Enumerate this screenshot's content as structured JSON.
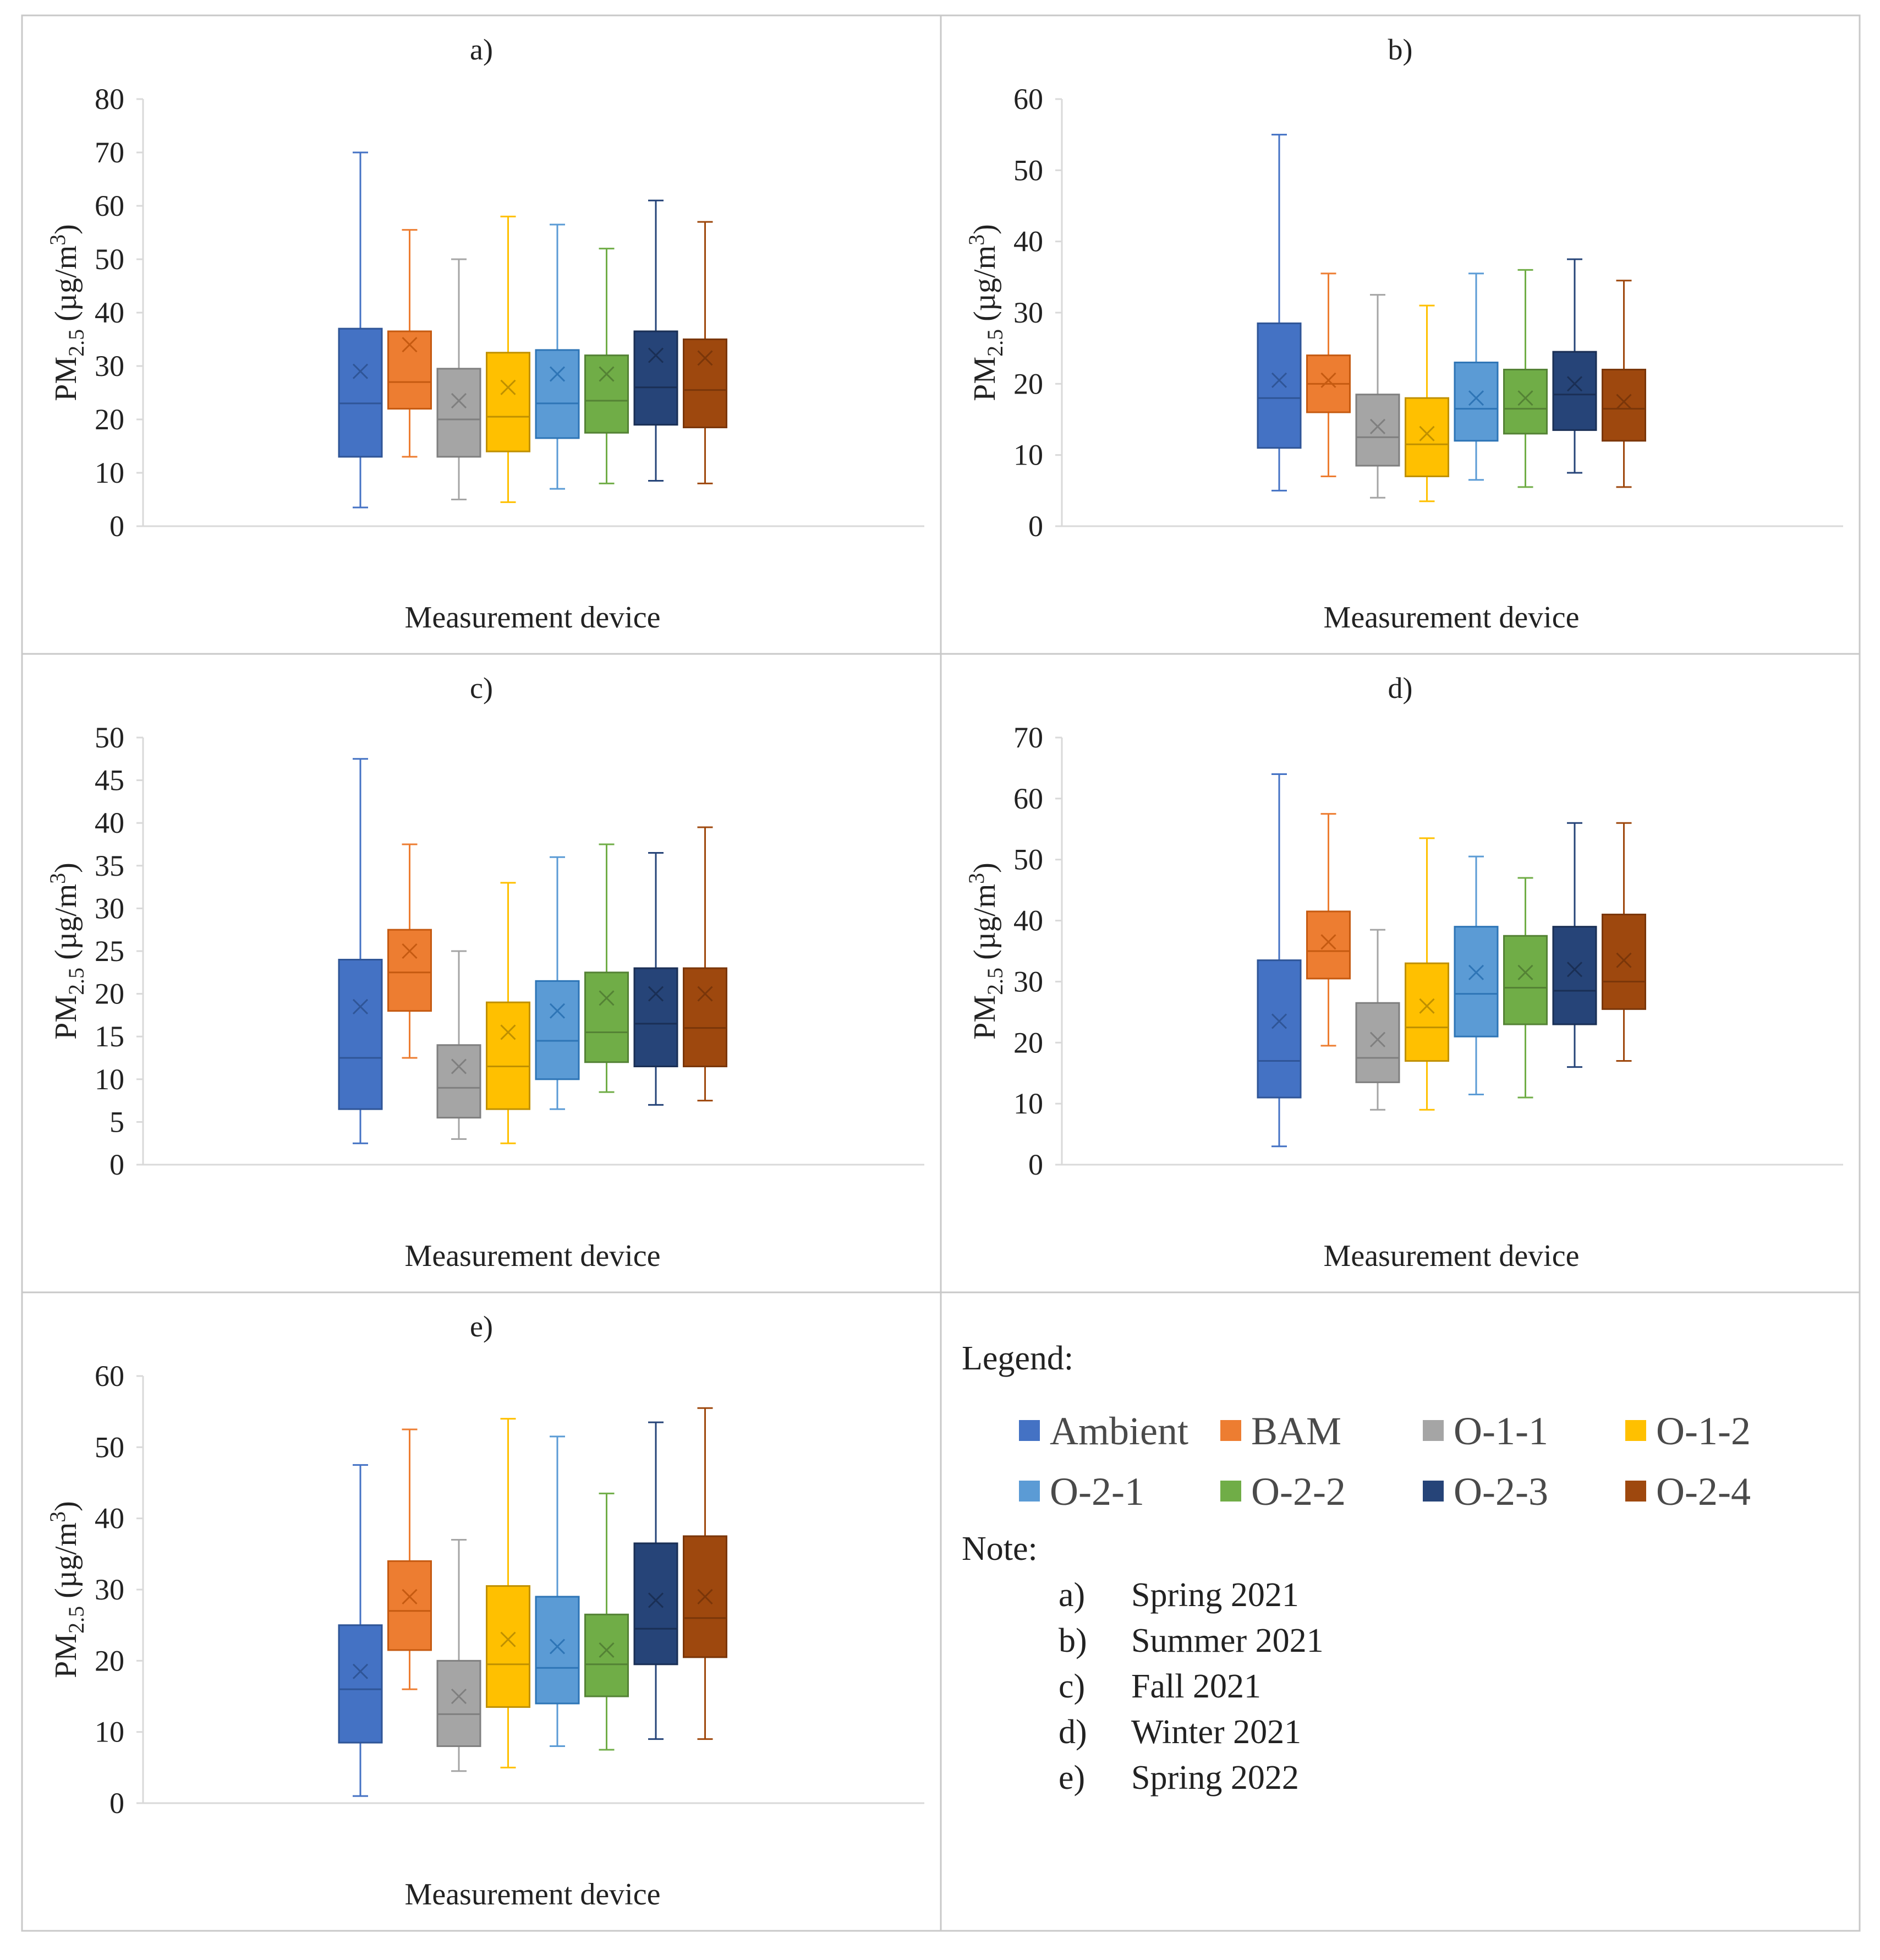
{
  "figure": {
    "ylabel_prefix": "PM",
    "ylabel_sub": "2.5",
    "ylabel_unit": " (µg/m",
    "ylabel_sup": "3",
    "ylabel_close": ")"
  },
  "series": [
    {
      "name": "Ambient",
      "color": "#4472C4",
      "median": "#2f5597"
    },
    {
      "name": "BAM",
      "color": "#ED7D31",
      "median": "#c55a11"
    },
    {
      "name": "O-1-1",
      "color": "#A5A5A5",
      "median": "#7f7f7f"
    },
    {
      "name": "O-1-2",
      "color": "#FFC000",
      "median": "#bf9000"
    },
    {
      "name": "O-2-1",
      "color": "#5B9BD5",
      "median": "#2e75b6"
    },
    {
      "name": "O-2-2",
      "color": "#70AD47",
      "median": "#548235"
    },
    {
      "name": "O-2-3",
      "color": "#264478",
      "median": "#1a2f55"
    },
    {
      "name": "O-2-4",
      "color": "#9E480E",
      "median": "#7a3609"
    }
  ],
  "chart_data": [
    {
      "type": "box",
      "title": "a)",
      "xlabel": "Measurement device",
      "ylabel": "PM2.5 (µg/m3)",
      "ylim": [
        0,
        80
      ],
      "yticks": [
        0,
        10,
        20,
        30,
        40,
        50,
        60,
        70,
        80
      ],
      "boxes": [
        {
          "min": 3.5,
          "q1": 13,
          "median": 23,
          "q3": 37,
          "max": 70,
          "mean": 29
        },
        {
          "min": 13,
          "q1": 22,
          "median": 27,
          "q3": 36.5,
          "max": 55.5,
          "mean": 34
        },
        {
          "min": 5,
          "q1": 13,
          "median": 20,
          "q3": 29.5,
          "max": 50,
          "mean": 23.5
        },
        {
          "min": 4.5,
          "q1": 14,
          "median": 20.5,
          "q3": 32.5,
          "max": 58,
          "mean": 26
        },
        {
          "min": 7,
          "q1": 16.5,
          "median": 23,
          "q3": 33,
          "max": 56.5,
          "mean": 28.5
        },
        {
          "min": 8,
          "q1": 17.5,
          "median": 23.5,
          "q3": 32,
          "max": 52,
          "mean": 28.5
        },
        {
          "min": 8.5,
          "q1": 19,
          "median": 26,
          "q3": 36.5,
          "max": 61,
          "mean": 32
        },
        {
          "min": 8,
          "q1": 18.5,
          "median": 25.5,
          "q3": 35,
          "max": 57,
          "mean": 31.5
        }
      ]
    },
    {
      "type": "box",
      "title": "b)",
      "xlabel": "Measurement device",
      "ylabel": "PM2.5 (µg/m3)",
      "ylim": [
        0,
        60
      ],
      "yticks": [
        0,
        10,
        20,
        30,
        40,
        50,
        60
      ],
      "boxes": [
        {
          "min": 5,
          "q1": 11,
          "median": 18,
          "q3": 28.5,
          "max": 55,
          "mean": 20.5
        },
        {
          "min": 7,
          "q1": 16,
          "median": 20,
          "q3": 24,
          "max": 35.5,
          "mean": 20.5
        },
        {
          "min": 4,
          "q1": 8.5,
          "median": 12.5,
          "q3": 18.5,
          "max": 32.5,
          "mean": 14
        },
        {
          "min": 3.5,
          "q1": 7,
          "median": 11.5,
          "q3": 18,
          "max": 31,
          "mean": 13
        },
        {
          "min": 6.5,
          "q1": 12,
          "median": 16.5,
          "q3": 23,
          "max": 35.5,
          "mean": 18
        },
        {
          "min": 5.5,
          "q1": 13,
          "median": 16.5,
          "q3": 22,
          "max": 36,
          "mean": 18
        },
        {
          "min": 7.5,
          "q1": 13.5,
          "median": 18.5,
          "q3": 24.5,
          "max": 37.5,
          "mean": 20
        },
        {
          "min": 5.5,
          "q1": 12,
          "median": 16.5,
          "q3": 22,
          "max": 34.5,
          "mean": 17.5
        }
      ]
    },
    {
      "type": "box",
      "title": "c)",
      "xlabel": "Measurement device",
      "ylabel": "PM2.5 (µg/m3)",
      "ylim": [
        0,
        50
      ],
      "yticks": [
        0,
        5,
        10,
        15,
        20,
        25,
        30,
        35,
        40,
        45,
        50
      ],
      "boxes": [
        {
          "min": 2.5,
          "q1": 6.5,
          "median": 12.5,
          "q3": 24,
          "max": 47.5,
          "mean": 18.5
        },
        {
          "min": 12.5,
          "q1": 18,
          "median": 22.5,
          "q3": 27.5,
          "max": 37.5,
          "mean": 25
        },
        {
          "min": 3,
          "q1": 5.5,
          "median": 9,
          "q3": 14,
          "max": 25,
          "mean": 11.5
        },
        {
          "min": 2.5,
          "q1": 6.5,
          "median": 11.5,
          "q3": 19,
          "max": 33,
          "mean": 15.5
        },
        {
          "min": 6.5,
          "q1": 10,
          "median": 14.5,
          "q3": 21.5,
          "max": 36,
          "mean": 18
        },
        {
          "min": 8.5,
          "q1": 12,
          "median": 15.5,
          "q3": 22.5,
          "max": 37.5,
          "mean": 19.5
        },
        {
          "min": 7,
          "q1": 11.5,
          "median": 16.5,
          "q3": 23,
          "max": 36.5,
          "mean": 20
        },
        {
          "min": 7.5,
          "q1": 11.5,
          "median": 16,
          "q3": 23,
          "max": 39.5,
          "mean": 20
        }
      ]
    },
    {
      "type": "box",
      "title": "d)",
      "xlabel": "Measurement device",
      "ylabel": "PM2.5 (µg/m3)",
      "ylim": [
        0,
        70
      ],
      "yticks": [
        0,
        10,
        20,
        30,
        40,
        50,
        60,
        70
      ],
      "boxes": [
        {
          "min": 3,
          "q1": 11,
          "median": 17,
          "q3": 33.5,
          "max": 64,
          "mean": 23.5
        },
        {
          "min": 19.5,
          "q1": 30.5,
          "median": 35,
          "q3": 41.5,
          "max": 57.5,
          "mean": 36.5
        },
        {
          "min": 9,
          "q1": 13.5,
          "median": 17.5,
          "q3": 26.5,
          "max": 38.5,
          "mean": 20.5
        },
        {
          "min": 9,
          "q1": 17,
          "median": 22.5,
          "q3": 33,
          "max": 53.5,
          "mean": 26
        },
        {
          "min": 11.5,
          "q1": 21,
          "median": 28,
          "q3": 39,
          "max": 50.5,
          "mean": 31.5
        },
        {
          "min": 11,
          "q1": 23,
          "median": 29,
          "q3": 37.5,
          "max": 47,
          "mean": 31.5
        },
        {
          "min": 16,
          "q1": 23,
          "median": 28.5,
          "q3": 39,
          "max": 56,
          "mean": 32
        },
        {
          "min": 17,
          "q1": 25.5,
          "median": 30,
          "q3": 41,
          "max": 56,
          "mean": 33.5
        }
      ]
    },
    {
      "type": "box",
      "title": "e)",
      "xlabel": "Measurement device",
      "ylabel": "PM2.5 (µg/m3)",
      "ylim": [
        0,
        60
      ],
      "yticks": [
        0,
        10,
        20,
        30,
        40,
        50,
        60
      ],
      "boxes": [
        {
          "min": 1,
          "q1": 8.5,
          "median": 16,
          "q3": 25,
          "max": 47.5,
          "mean": 18.5
        },
        {
          "min": 16,
          "q1": 21.5,
          "median": 27,
          "q3": 34,
          "max": 52.5,
          "mean": 29
        },
        {
          "min": 4.5,
          "q1": 8,
          "median": 12.5,
          "q3": 20,
          "max": 37,
          "mean": 15
        },
        {
          "min": 5,
          "q1": 13.5,
          "median": 19.5,
          "q3": 30.5,
          "max": 54,
          "mean": 23
        },
        {
          "min": 8,
          "q1": 14,
          "median": 19,
          "q3": 29,
          "max": 51.5,
          "mean": 22
        },
        {
          "min": 7.5,
          "q1": 15,
          "median": 19.5,
          "q3": 26.5,
          "max": 43.5,
          "mean": 21.5
        },
        {
          "min": 9,
          "q1": 19.5,
          "median": 24.5,
          "q3": 36.5,
          "max": 53.5,
          "mean": 28.5
        },
        {
          "min": 9,
          "q1": 20.5,
          "median": 26,
          "q3": 37.5,
          "max": 55.5,
          "mean": 29
        }
      ]
    }
  ],
  "legend": {
    "heading": "Legend:",
    "note_heading": "Note:",
    "notes": [
      {
        "key": "a)",
        "text": "Spring 2021"
      },
      {
        "key": "b)",
        "text": "Summer 2021"
      },
      {
        "key": "c)",
        "text": "Fall 2021"
      },
      {
        "key": "d)",
        "text": "Winter 2021"
      },
      {
        "key": "e)",
        "text": "Spring 2022"
      }
    ]
  }
}
